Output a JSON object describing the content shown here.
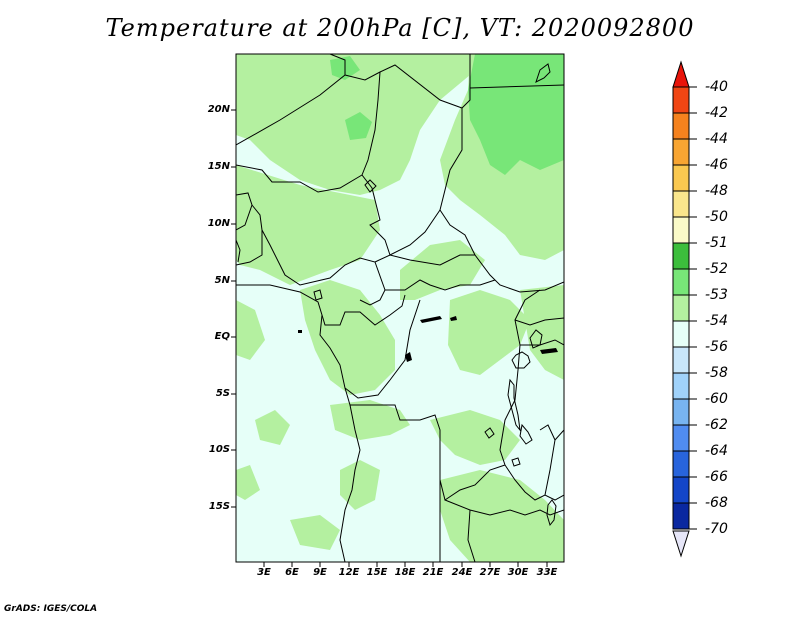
{
  "title": "Temperature at 200hPa [C], VT: 2020092800",
  "credit": "GrADS: IGES/COLA",
  "lat_labels": [
    "20N",
    "15N",
    "10N",
    "5N",
    "EQ",
    "5S",
    "10S",
    "15S"
  ],
  "lon_labels": [
    "3E",
    "6E",
    "9E",
    "12E",
    "15E",
    "18E",
    "21E",
    "24E",
    "27E",
    "30E",
    "33E"
  ],
  "colorbar": {
    "labels": [
      "-40",
      "-42",
      "-44",
      "-46",
      "-48",
      "-50",
      "-51",
      "-52",
      "-53",
      "-54",
      "-56",
      "-58",
      "-60",
      "-62",
      "-64",
      "-66",
      "-68",
      "-70"
    ],
    "colors": [
      "#e8140a",
      "#f04614",
      "#f5821e",
      "#f8a532",
      "#fac850",
      "#fae68c",
      "#fafac8",
      "#3cbe3c",
      "#78e678",
      "#b4f0a0",
      "#e6fff8",
      "#c8e6fa",
      "#a0d2fa",
      "#78b4f0",
      "#508cf0",
      "#2864dc",
      "#1446c8",
      "#0a28a0",
      "#000a6e"
    ],
    "top_arrow_color": "#e8140a",
    "bottom_arrow_color": "#e6e6f8"
  },
  "field_colors": {
    "base": "#e6fff8",
    "band_53": "#b4f0a0",
    "band_52": "#78e678"
  }
}
